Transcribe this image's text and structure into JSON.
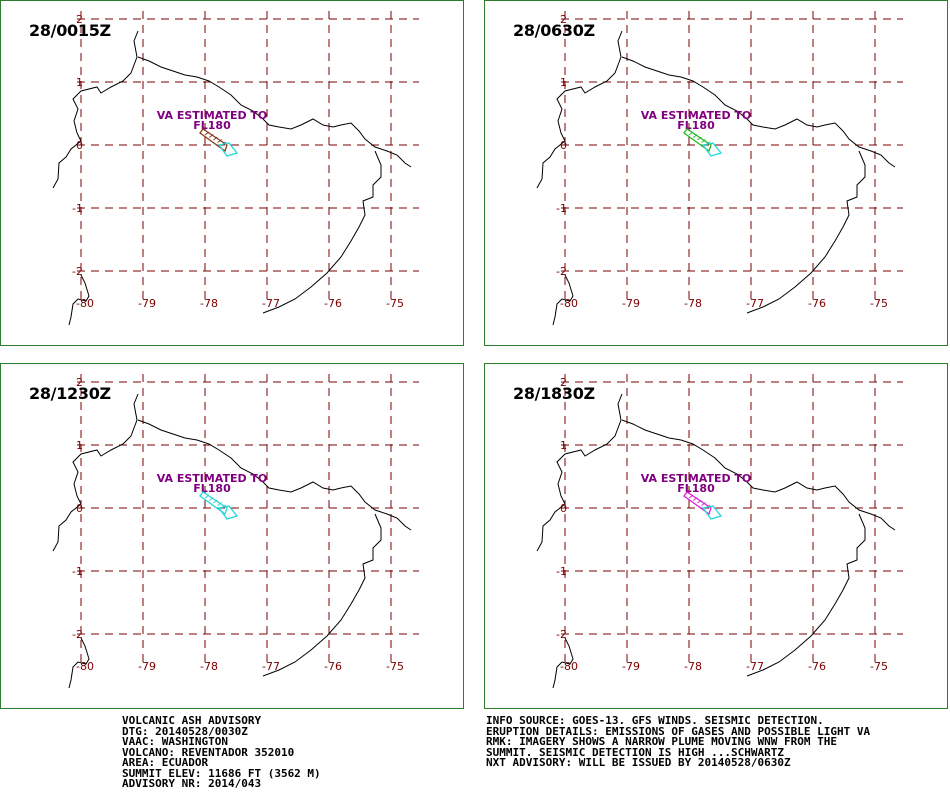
{
  "panels": [
    {
      "time": "28/0015Z",
      "va_label_1": "VA ESTIMATED TO",
      "va_label_2": "FL180",
      "plume_color": "#8b3a1a"
    },
    {
      "time": "28/0630Z",
      "va_label_1": "VA ESTIMATED TO",
      "va_label_2": "FL180",
      "plume_color": "#22bb22"
    },
    {
      "time": "28/1230Z",
      "va_label_1": "VA ESTIMATED TO",
      "va_label_2": "FL180",
      "plume_color": "#22d8d8"
    },
    {
      "time": "28/1830Z",
      "va_label_1": "VA ESTIMATED TO",
      "va_label_2": "FL180",
      "plume_color": "#dd22dd"
    }
  ],
  "lat_labels": [
    "2",
    "1",
    "0",
    "-1",
    "-2"
  ],
  "lon_labels": [
    "-80",
    "-79",
    "-78",
    "-77",
    "-76",
    "-75"
  ],
  "colors": {
    "grid": "#7a0000",
    "va_text": "#800080",
    "forecast_outline": "#22d8d8",
    "coast": "#000000",
    "frame": "#2e7d2e"
  },
  "advisory": {
    "lines": [
      "VOLCANIC ASH ADVISORY",
      "DTG: 20140528/0030Z",
      "VAAC: WASHINGTON",
      "VOLCANO: REVENTADOR 352010",
      "AREA: ECUADOR",
      "SUMMIT ELEV: 11686 FT (3562 M)",
      "ADVISORY NR: 2014/043"
    ]
  },
  "info": {
    "lines": [
      "INFO SOURCE: GOES-13. GFS WINDS. SEISMIC DETECTION.",
      "ERUPTION DETAILS: EMISSIONS OF GASES AND POSSIBLE LIGHT VA",
      "RMK: IMAGERY SHOWS A NARROW PLUME MOVING WNW FROM THE",
      "SUMMIT. SEISMIC DETECTION IS HIGH ...SCHWARTZ",
      "NXT ADVISORY: WILL BE ISSUED BY 20140528/0630Z"
    ]
  }
}
